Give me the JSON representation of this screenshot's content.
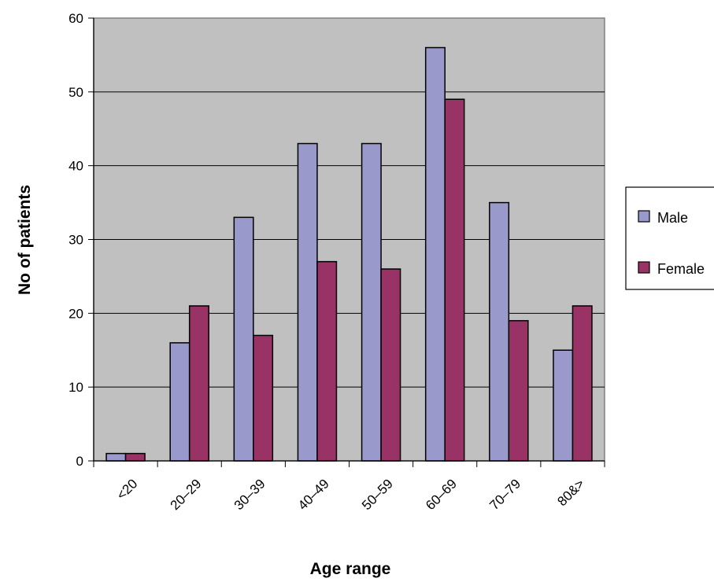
{
  "chart_data": {
    "type": "bar",
    "categories": [
      "<20",
      "20–29",
      "30–39",
      "40–49",
      "50–59",
      "60–69",
      "70–79",
      "80&>"
    ],
    "series": [
      {
        "name": "Male",
        "values": [
          1,
          16,
          33,
          43,
          43,
          56,
          35,
          15
        ],
        "color": "#9999cc"
      },
      {
        "name": "Female",
        "values": [
          1,
          21,
          17,
          27,
          26,
          49,
          19,
          21
        ],
        "color": "#993366"
      }
    ],
    "xlabel": "Age range",
    "ylabel": "No of patients",
    "ylim": [
      0,
      60
    ],
    "yticks": [
      0,
      10,
      20,
      30,
      40,
      50,
      60
    ],
    "grid": true,
    "plot_background": "#c0c0c0",
    "legend_position": "right"
  }
}
